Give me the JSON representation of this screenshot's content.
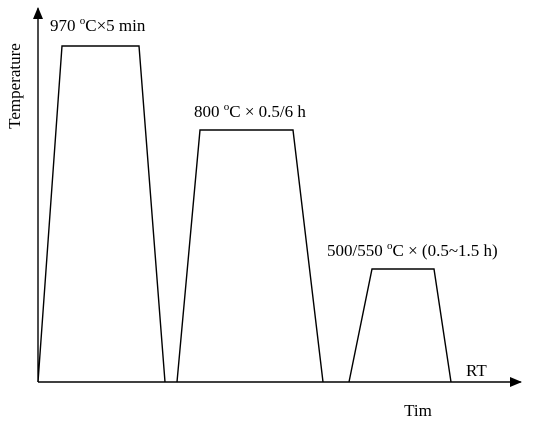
{
  "axes": {
    "y_label": "Temperature",
    "x_label": "Tim",
    "baseline_label": "RT"
  },
  "steps": [
    {
      "id": "solution",
      "temp": "970",
      "deg": "o",
      "unit_tail": "C×5 min"
    },
    {
      "id": "stabilization",
      "temp": "800",
      "deg": "o",
      "unit_tail": "C × 0.5/6 h"
    },
    {
      "id": "aging",
      "temp": "500/550",
      "deg": "o",
      "unit_tail": "C × (0.5~1.5 h)"
    }
  ],
  "colors": {
    "line": "#000000",
    "background": "#ffffff"
  }
}
